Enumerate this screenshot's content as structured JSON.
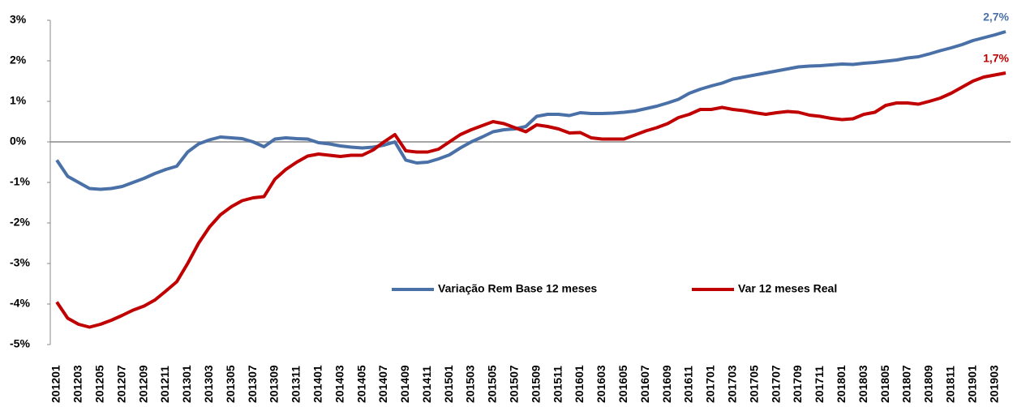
{
  "chart_data": {
    "type": "line",
    "categories": [
      "201201",
      null,
      "201203",
      null,
      "201205",
      null,
      "201207",
      null,
      "201209",
      null,
      "201211",
      null,
      "201301",
      null,
      "201303",
      null,
      "201305",
      null,
      "201307",
      null,
      "201309",
      null,
      "201311",
      null,
      "201401",
      null,
      "201403",
      null,
      "201405",
      null,
      "201407",
      null,
      "201409",
      null,
      "201411",
      null,
      "201501",
      null,
      "201503",
      null,
      "201505",
      null,
      "201507",
      null,
      "201509",
      null,
      "201511",
      null,
      "201601",
      null,
      "201603",
      null,
      "201605",
      null,
      "201607",
      null,
      "201609",
      null,
      "201611",
      null,
      "201701",
      null,
      "201703",
      null,
      "201705",
      null,
      "201707",
      null,
      "201709",
      null,
      "201711",
      null,
      "201801",
      null,
      "201803",
      null,
      "201805",
      null,
      "201807",
      null,
      "201809",
      null,
      "201811",
      null,
      "201901",
      null,
      "201903",
      null
    ],
    "series": [
      {
        "name": "Variação Rem Base 12 meses",
        "color": "#4a70a8",
        "values": [
          -0.45,
          -0.85,
          -1.0,
          -1.15,
          -1.17,
          -1.15,
          -1.1,
          -1.0,
          -0.9,
          -0.78,
          -0.68,
          -0.6,
          -0.25,
          -0.05,
          0.05,
          0.12,
          0.1,
          0.08,
          0.0,
          -0.12,
          0.07,
          0.1,
          0.08,
          0.07,
          -0.02,
          -0.05,
          -0.1,
          -0.13,
          -0.15,
          -0.13,
          -0.08,
          0.0,
          -0.45,
          -0.52,
          -0.5,
          -0.42,
          -0.32,
          -0.15,
          0.0,
          0.12,
          0.25,
          0.3,
          0.32,
          0.38,
          0.63,
          0.68,
          0.68,
          0.65,
          0.72,
          0.7,
          0.7,
          0.71,
          0.73,
          0.76,
          0.82,
          0.88,
          0.96,
          1.05,
          1.2,
          1.3,
          1.38,
          1.45,
          1.55,
          1.6,
          1.65,
          1.7,
          1.75,
          1.8,
          1.85,
          1.87,
          1.88,
          1.9,
          1.92,
          1.91,
          1.94,
          1.96,
          1.99,
          2.02,
          2.07,
          2.1,
          2.17,
          2.25,
          2.32,
          2.4,
          2.5,
          2.57,
          2.64,
          2.72
        ],
        "value_labels": [
          null,
          null,
          null,
          null,
          null,
          null,
          null,
          null,
          null,
          null,
          null,
          null,
          null,
          null,
          null,
          null,
          null,
          null,
          null,
          null,
          null,
          null,
          null,
          null,
          null,
          null,
          null,
          null,
          null,
          null,
          null,
          null,
          null,
          null,
          null,
          null,
          null,
          null,
          null,
          null,
          null,
          null,
          null,
          null,
          null,
          null,
          null,
          null,
          null,
          null,
          null,
          null,
          null,
          null,
          null,
          null,
          null,
          null,
          null,
          null,
          null,
          null,
          null,
          null,
          null,
          null,
          null,
          null,
          null,
          null,
          null,
          null,
          null,
          null,
          null,
          null,
          null,
          null,
          null,
          null,
          null,
          null,
          null,
          null,
          null,
          null,
          null,
          "2,7%"
        ]
      },
      {
        "name": "Var 12 meses Real",
        "color": "#c00000",
        "values": [
          -3.95,
          -4.35,
          -4.5,
          -4.57,
          -4.5,
          -4.4,
          -4.28,
          -4.15,
          -4.05,
          -3.9,
          -3.68,
          -3.45,
          -3.0,
          -2.5,
          -2.1,
          -1.8,
          -1.6,
          -1.45,
          -1.38,
          -1.35,
          -0.92,
          -0.68,
          -0.5,
          -0.35,
          -0.3,
          -0.33,
          -0.36,
          -0.33,
          -0.33,
          -0.2,
          0.0,
          0.18,
          -0.22,
          -0.25,
          -0.25,
          -0.18,
          0.0,
          0.18,
          0.3,
          0.4,
          0.5,
          0.45,
          0.35,
          0.25,
          0.42,
          0.38,
          0.32,
          0.22,
          0.23,
          0.1,
          0.07,
          0.07,
          0.07,
          0.17,
          0.27,
          0.35,
          0.45,
          0.6,
          0.68,
          0.8,
          0.8,
          0.85,
          0.8,
          0.77,
          0.72,
          0.68,
          0.72,
          0.75,
          0.73,
          0.66,
          0.63,
          0.58,
          0.55,
          0.57,
          0.68,
          0.73,
          0.9,
          0.96,
          0.96,
          0.93,
          1.0,
          1.08,
          1.2,
          1.35,
          1.5,
          1.6,
          1.65,
          1.7
        ],
        "value_labels": [
          null,
          null,
          null,
          null,
          null,
          null,
          null,
          null,
          null,
          null,
          null,
          null,
          null,
          null,
          null,
          null,
          null,
          null,
          null,
          null,
          null,
          null,
          null,
          null,
          null,
          null,
          null,
          null,
          null,
          null,
          null,
          null,
          null,
          null,
          null,
          null,
          null,
          null,
          null,
          null,
          null,
          null,
          null,
          null,
          null,
          null,
          null,
          null,
          null,
          null,
          null,
          null,
          null,
          null,
          null,
          null,
          null,
          null,
          null,
          null,
          null,
          null,
          null,
          null,
          null,
          null,
          null,
          null,
          null,
          null,
          null,
          null,
          null,
          null,
          null,
          null,
          null,
          null,
          null,
          null,
          null,
          null,
          null,
          null,
          null,
          null,
          null,
          "1,7%"
        ]
      }
    ],
    "ylim": [
      -5,
      3
    ],
    "yticks": [
      {
        "value": -5,
        "label": "-5%"
      },
      {
        "value": -4,
        "label": "-4%"
      },
      {
        "value": -3,
        "label": "-3%"
      },
      {
        "value": -2,
        "label": "-2%"
      },
      {
        "value": -1,
        "label": "-1%"
      },
      {
        "value": 0,
        "label": "0%"
      },
      {
        "value": 1,
        "label": "1%"
      },
      {
        "value": 2,
        "label": "2%"
      },
      {
        "value": 3,
        "label": "3%"
      }
    ],
    "grid": false,
    "legend": "lower center"
  }
}
